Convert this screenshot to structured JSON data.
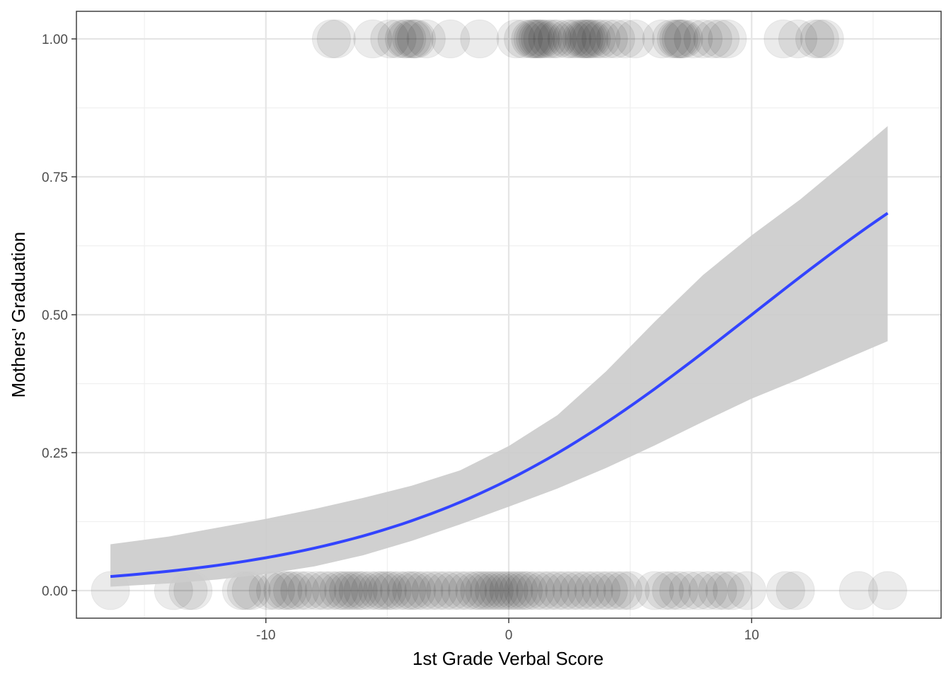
{
  "chart_data": {
    "type": "scatter",
    "title": "",
    "xlabel": "1st Grade Verbal Score",
    "ylabel": "Mothers' Graduation",
    "xlim": [
      -17.8,
      17.8
    ],
    "ylim": [
      -0.05,
      1.05
    ],
    "x_ticks": [
      -10,
      0,
      10
    ],
    "x_tick_labels": [
      "-10",
      "0",
      "10"
    ],
    "y_ticks": [
      0,
      0.25,
      0.5,
      0.75,
      1
    ],
    "y_tick_labels": [
      "0.00",
      "0.25",
      "0.50",
      "0.75",
      "1.00"
    ],
    "grid": true,
    "legend": "none",
    "colors": {
      "points": "#000000",
      "fit_line": "#3344ff",
      "ribbon": "#cccccc",
      "grid": "#e5e5e5",
      "border": "#333333"
    },
    "points": {
      "y1_x": [
        -7.3,
        -7.1,
        -5.6,
        -4.9,
        -4.6,
        -4.3,
        -4.2,
        -4.0,
        -3.9,
        -3.8,
        -3.4,
        -2.4,
        -1.2,
        0.3,
        0.6,
        0.9,
        1.0,
        1.1,
        1.2,
        1.3,
        1.4,
        1.6,
        1.8,
        2.0,
        2.4,
        2.6,
        2.8,
        3.0,
        3.1,
        3.2,
        3.3,
        3.4,
        3.6,
        3.8,
        4.1,
        4.4,
        4.8,
        5.2,
        6.3,
        6.7,
        6.9,
        7.0,
        7.1,
        7.2,
        7.6,
        8.0,
        8.4,
        8.7,
        9.0,
        11.3,
        11.9,
        12.6,
        12.8,
        13.0
      ],
      "y0_x": [
        -16.4,
        -13.8,
        -13.2,
        -13.0,
        -11.0,
        -10.8,
        -10.6,
        -9.9,
        -9.6,
        -9.3,
        -9.1,
        -8.9,
        -8.6,
        -8.3,
        -7.9,
        -7.6,
        -7.3,
        -7.0,
        -6.8,
        -6.6,
        -6.4,
        -6.2,
        -6.0,
        -5.7,
        -5.4,
        -5.2,
        -5.0,
        -4.8,
        -4.5,
        -4.2,
        -4.0,
        -3.8,
        -3.5,
        -3.2,
        -2.9,
        -2.6,
        -2.3,
        -2.0,
        -1.7,
        -1.4,
        -1.2,
        -1.0,
        -0.8,
        -0.6,
        -0.4,
        -0.2,
        0.0,
        0.2,
        0.4,
        0.6,
        0.8,
        1.1,
        1.4,
        1.7,
        2.0,
        2.3,
        2.6,
        2.9,
        3.2,
        3.5,
        3.8,
        4.1,
        4.4,
        4.7,
        5.0,
        6.0,
        6.4,
        6.7,
        7.0,
        7.4,
        7.8,
        8.2,
        8.6,
        8.9,
        9.2,
        9.8,
        11.4,
        11.8,
        14.4,
        15.6
      ]
    },
    "fit": {
      "method": "logistic",
      "intercept": -1.38,
      "slope": 0.138,
      "x_range": [
        -16.4,
        15.6
      ],
      "ci": [
        {
          "x": -16.4,
          "lo": 0.007,
          "hi": 0.084
        },
        {
          "x": -14,
          "lo": 0.013,
          "hi": 0.098
        },
        {
          "x": -12,
          "lo": 0.02,
          "hi": 0.114
        },
        {
          "x": -10,
          "lo": 0.03,
          "hi": 0.13
        },
        {
          "x": -8,
          "lo": 0.044,
          "hi": 0.148
        },
        {
          "x": -6,
          "lo": 0.064,
          "hi": 0.168
        },
        {
          "x": -4,
          "lo": 0.09,
          "hi": 0.19
        },
        {
          "x": -2,
          "lo": 0.12,
          "hi": 0.218
        },
        {
          "x": 0,
          "lo": 0.152,
          "hi": 0.262
        },
        {
          "x": 2,
          "lo": 0.185,
          "hi": 0.318
        },
        {
          "x": 4,
          "lo": 0.222,
          "hi": 0.397
        },
        {
          "x": 6,
          "lo": 0.263,
          "hi": 0.487
        },
        {
          "x": 8,
          "lo": 0.306,
          "hi": 0.572
        },
        {
          "x": 10,
          "lo": 0.348,
          "hi": 0.644
        },
        {
          "x": 12,
          "lo": 0.384,
          "hi": 0.709
        },
        {
          "x": 14,
          "lo": 0.422,
          "hi": 0.782
        },
        {
          "x": 15.6,
          "lo": 0.452,
          "hi": 0.842
        }
      ]
    }
  }
}
